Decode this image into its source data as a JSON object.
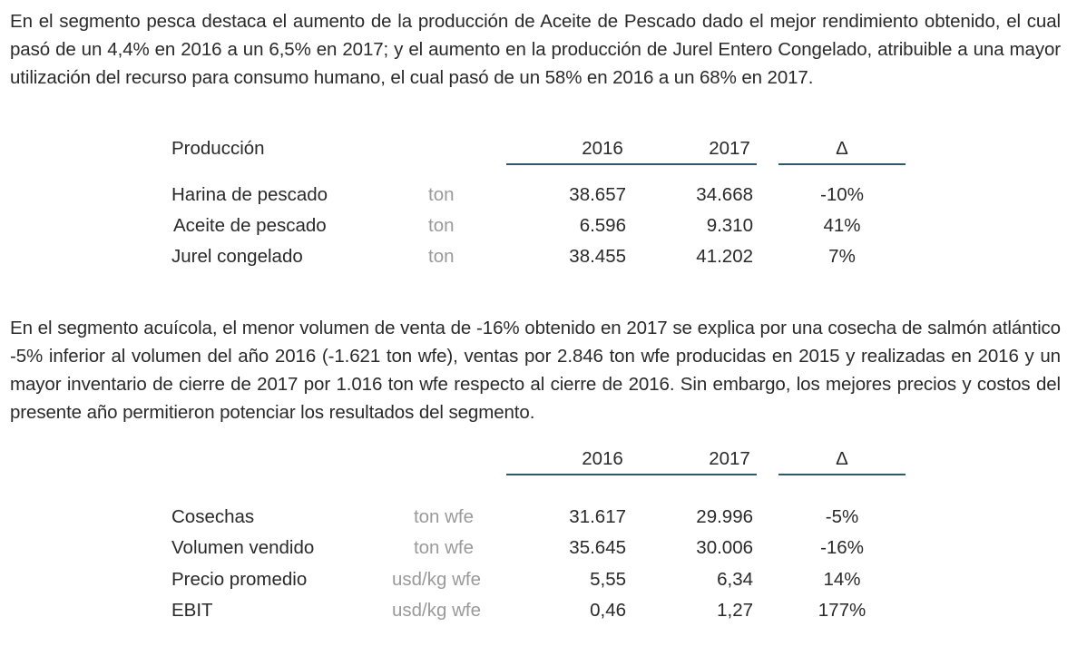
{
  "paragraphs": [
    "En el segmento pesca destaca el aumento de la producción de Aceite de Pescado dado el mejor rendimiento obtenido, el cual pasó de un 4,4% en 2016 a un 6,5% en 2017; y el aumento en la producción de Jurel Entero Congelado, atribuible a una mayor utilización del recurso para consumo humano, el cual pasó de un 58% en 2016 a un 68% en 2017.",
    "En el segmento acuícola, el menor volumen de venta de -16% obtenido en 2017 se explica por una cosecha de salmón atlántico -5% inferior al volumen del año 2016 (-1.621 ton wfe), ventas por 2.846 ton wfe producidas en 2015 y realizadas en 2016 y un mayor inventario de cierre de 2017 por 1.016 ton wfe respecto al cierre de 2016. Sin embargo, los mejores precios y costos del presente año permitieron potenciar los resultados del segmento."
  ],
  "table1": {
    "title": "Producción",
    "headers": [
      "2016",
      "2017",
      "Δ"
    ],
    "rows": [
      {
        "label": "Harina de pescado",
        "unit": "ton",
        "v2016": "38.657",
        "v2017": "34.668",
        "delta": "-10%"
      },
      {
        "label": "Aceite de pescado",
        "unit": "ton",
        "v2016": "6.596",
        "v2017": "9.310",
        "delta": "41%"
      },
      {
        "label": "Jurel congelado",
        "unit": "ton",
        "v2016": "38.455",
        "v2017": "41.202",
        "delta": "7%"
      }
    ]
  },
  "table2": {
    "headers": [
      "2016",
      "2017",
      "Δ"
    ],
    "rows": [
      {
        "label": "Cosechas",
        "unit": "ton wfe",
        "v2016": "31.617",
        "v2017": "29.996",
        "delta": "-5%"
      },
      {
        "label": "Volumen vendido",
        "unit": "ton wfe",
        "v2016": "35.645",
        "v2017": "30.006",
        "delta": "-16%"
      },
      {
        "label": "Precio promedio",
        "unit": "usd/kg wfe",
        "v2016": "5,55",
        "v2017": "6,34",
        "delta": "14%"
      },
      {
        "label": "EBIT",
        "unit": "usd/kg wfe",
        "v2016": "0,46",
        "v2017": "1,27",
        "delta": "177%"
      }
    ]
  },
  "colors": {
    "rule": "#2d5a66",
    "text": "#2a2a2a",
    "unit": "#9a9a9a"
  }
}
